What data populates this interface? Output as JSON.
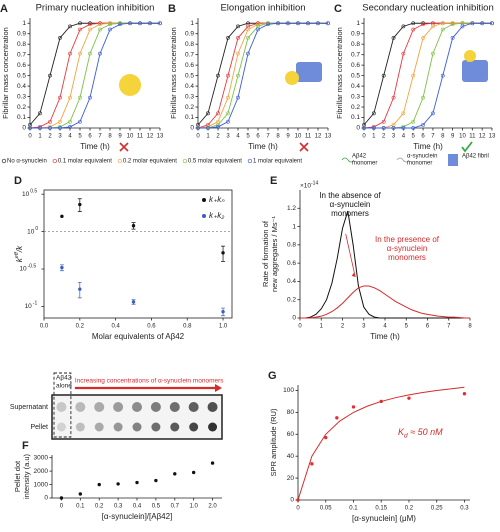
{
  "chart_data": [
    {
      "panel": "A",
      "type": "line",
      "title": "Primary nucleation inhibition",
      "xlabel": "Time (h)",
      "ylabel": "Fibrillar mass concentration",
      "x": [
        0,
        1,
        2,
        3,
        4,
        5,
        6,
        7,
        8,
        9,
        10,
        11,
        12,
        13
      ],
      "xlim": [
        0,
        13
      ],
      "ylim": [
        0,
        1.05
      ],
      "xticks": [
        0,
        1,
        2,
        3,
        4,
        5,
        6,
        7,
        8,
        9,
        10,
        11,
        12,
        13
      ],
      "yticks": [
        0,
        0.1,
        0.2,
        0.3,
        0.4,
        0.5,
        0.6,
        0.7,
        0.8,
        0.9,
        1
      ],
      "markers": true,
      "legend": "below",
      "series": [
        {
          "name": "No α-synuclein",
          "color": "#222222",
          "values": [
            0.03,
            0.14,
            0.5,
            0.86,
            0.97,
            1,
            1,
            1,
            1,
            1,
            1,
            1,
            1,
            1
          ]
        },
        {
          "name": "0.1 molar equivalent",
          "color": "#e8383d",
          "values": [
            0,
            0.01,
            0.06,
            0.29,
            0.71,
            0.94,
            0.99,
            1,
            1,
            1,
            1,
            1,
            1,
            1
          ]
        },
        {
          "name": "0.2 molar equivalent",
          "color": "#f4a340",
          "values": [
            0,
            0,
            0.01,
            0.06,
            0.29,
            0.71,
            0.94,
            0.99,
            1,
            1,
            1,
            1,
            1,
            1
          ]
        },
        {
          "name": "0.5 molar equivalent",
          "color": "#7cc242",
          "values": [
            0,
            0,
            0,
            0.01,
            0.06,
            0.29,
            0.71,
            0.94,
            0.99,
            1,
            1,
            1,
            1,
            1
          ]
        },
        {
          "name": "1 molar equivalent",
          "color": "#3b5bdb",
          "values": [
            0,
            0,
            0,
            0,
            0.01,
            0.06,
            0.29,
            0.71,
            0.94,
            0.99,
            1,
            1,
            1,
            1
          ]
        }
      ]
    },
    {
      "panel": "B",
      "type": "line",
      "title": "Elongation inhibition",
      "xlabel": "Time (h)",
      "ylabel": "Fibrillar mass concentration",
      "x": [
        0,
        1,
        2,
        3,
        4,
        5,
        6,
        7,
        8,
        9,
        10,
        11,
        12,
        13
      ],
      "xlim": [
        0,
        13
      ],
      "ylim": [
        0,
        1.05
      ],
      "xticks": [
        0,
        1,
        2,
        3,
        4,
        5,
        6,
        7,
        8,
        9,
        10,
        11,
        12,
        13
      ],
      "yticks": [
        0,
        0.1,
        0.2,
        0.3,
        0.4,
        0.5,
        0.6,
        0.7,
        0.8,
        0.9,
        1
      ],
      "markers": true,
      "series": [
        {
          "color": "#222222",
          "values": [
            0.03,
            0.14,
            0.5,
            0.86,
            0.97,
            1,
            1,
            1,
            1,
            1,
            1,
            1,
            1,
            1
          ]
        },
        {
          "color": "#e8383d",
          "values": [
            0,
            0.03,
            0.14,
            0.5,
            0.86,
            0.97,
            1,
            1,
            1,
            1,
            1,
            1,
            1,
            1
          ]
        },
        {
          "color": "#f4a340",
          "values": [
            0,
            0.01,
            0.06,
            0.29,
            0.71,
            0.94,
            0.99,
            1,
            1,
            1,
            1,
            1,
            1,
            1
          ]
        },
        {
          "color": "#7cc242",
          "values": [
            0,
            0,
            0.03,
            0.14,
            0.5,
            0.86,
            0.97,
            1,
            1,
            1,
            1,
            1,
            1,
            1
          ]
        },
        {
          "color": "#3b5bdb",
          "values": [
            0,
            0,
            0.01,
            0.06,
            0.29,
            0.71,
            0.94,
            0.99,
            1,
            1,
            1,
            1,
            1,
            1
          ]
        }
      ]
    },
    {
      "panel": "C",
      "type": "line",
      "title": "Secondary nucleation inhibition",
      "xlabel": "Time (h)",
      "ylabel": "Fibrillar mass concentration",
      "x": [
        0,
        1,
        2,
        3,
        4,
        5,
        6,
        7,
        8,
        9,
        10,
        11,
        12,
        13
      ],
      "xlim": [
        0,
        13
      ],
      "ylim": [
        0,
        1.05
      ],
      "xticks": [
        0,
        1,
        2,
        3,
        4,
        5,
        6,
        7,
        8,
        9,
        10,
        11,
        12,
        13
      ],
      "yticks": [
        0,
        0.1,
        0.2,
        0.3,
        0.4,
        0.5,
        0.6,
        0.7,
        0.8,
        0.9,
        1
      ],
      "markers": true,
      "illustration_labels": [
        [
          "Aβ42",
          "monomer"
        ],
        [
          "α-synuclein",
          "monomer"
        ],
        [
          "Aβ42 fibril"
        ]
      ],
      "series": [
        {
          "color": "#222222",
          "values": [
            0.03,
            0.14,
            0.5,
            0.86,
            0.97,
            1,
            1,
            1,
            1,
            1,
            1,
            1,
            1,
            1
          ]
        },
        {
          "color": "#e8383d",
          "values": [
            0,
            0.01,
            0.06,
            0.29,
            0.71,
            0.94,
            0.99,
            1,
            1,
            1,
            1,
            1,
            1,
            1
          ]
        },
        {
          "color": "#f4a340",
          "values": [
            0,
            0,
            0,
            0.03,
            0.14,
            0.5,
            0.86,
            0.97,
            1,
            1,
            1,
            1,
            1,
            1
          ]
        },
        {
          "color": "#7cc242",
          "values": [
            0,
            0,
            0,
            0,
            0.01,
            0.06,
            0.29,
            0.71,
            0.94,
            0.99,
            1,
            1,
            1,
            1
          ]
        },
        {
          "color": "#3b5bdb",
          "values": [
            0,
            0,
            0,
            0,
            0,
            0,
            0.03,
            0.14,
            0.5,
            0.86,
            0.97,
            1,
            1,
            1
          ]
        }
      ]
    },
    {
      "panel": "D",
      "type": "scatter",
      "xlabel": "Molar equivalents of Aβ42",
      "ylabel_parts": [
        "k",
        "eff",
        "/k"
      ],
      "xlim": [
        0,
        1.05
      ],
      "ylim": [
        0.07,
        3.6
      ],
      "log_y": true,
      "frame": true,
      "reference_line": 1,
      "legend": "upper right",
      "xticks": [
        {
          "value": 0,
          "label": "0.0"
        },
        0.2,
        0.4,
        0.6,
        0.8,
        {
          "value": 1,
          "label": "1.0"
        }
      ],
      "yticks": [
        {
          "value": 3.1623,
          "label": "10",
          "exp": "0.5"
        },
        {
          "value": 1,
          "label": "10",
          "exp": "0"
        },
        {
          "value": 0.31623,
          "label": "10",
          "exp": "-0.5"
        },
        {
          "value": 0.1,
          "label": "10",
          "exp": "-1"
        }
      ],
      "series": [
        {
          "name": "k₊kₙ",
          "color": "#111111",
          "x": [
            0.1,
            0.2,
            0.5,
            1.0
          ],
          "values": [
            1.6,
            2.3,
            1.2,
            0.52
          ],
          "errors": [
            null,
            0.45,
            0.12,
            0.12
          ]
        },
        {
          "name": "k₊k₂",
          "color": "#3a5fbf",
          "x": [
            0.1,
            0.2,
            0.5,
            1.0
          ],
          "values": [
            0.33,
            0.17,
            0.115,
            0.085
          ],
          "errors": [
            0.03,
            0.04,
            0.008,
            0.01
          ]
        }
      ]
    },
    {
      "panel": "E",
      "type": "line",
      "xlabel": "Time (h)",
      "ylabel": [
        "Rate of formation of",
        "new aggregates / Ms⁻¹"
      ],
      "y_multiplier": {
        "label": "×10",
        "exp": "-14"
      },
      "x": [
        0,
        0.25,
        0.5,
        0.75,
        1,
        1.25,
        1.5,
        1.75,
        2,
        2.25,
        2.5,
        2.75,
        3,
        3.25,
        3.5,
        3.75,
        4,
        4.25,
        4.5,
        4.75,
        5,
        5.25,
        5.5,
        5.75,
        6,
        6.25,
        6.5,
        6.75,
        7,
        7.25,
        7.5,
        7.75,
        8
      ],
      "xlim": [
        0,
        8
      ],
      "ylim": [
        0,
        1.4
      ],
      "xticks": [
        0,
        1,
        2,
        3,
        4,
        5,
        6,
        7,
        8
      ],
      "yticks": [
        0,
        0.2,
        0.4,
        0.6,
        0.8,
        1,
        1.2
      ],
      "annotations": [
        {
          "lines": [
            "In the absence of",
            "α-synuclein",
            "monomers"
          ],
          "color": "#111111"
        },
        {
          "lines": [
            "In the presence of",
            "α-synuclein",
            "monomers"
          ],
          "color": "#d62b2b"
        }
      ],
      "series": [
        {
          "color": "#111111",
          "values": [
            0,
            0,
            0.01,
            0.04,
            0.1,
            0.2,
            0.38,
            0.65,
            0.98,
            1.17,
            0.8,
            0.35,
            0.12,
            0.04,
            0.01,
            0,
            0,
            0,
            0,
            0,
            0,
            0,
            0,
            0,
            0,
            0,
            0,
            0,
            0,
            0,
            0,
            0,
            0
          ]
        },
        {
          "color": "#d62b2b",
          "values": [
            0,
            0,
            0,
            0.01,
            0.02,
            0.04,
            0.07,
            0.11,
            0.16,
            0.22,
            0.28,
            0.33,
            0.35,
            0.35,
            0.33,
            0.3,
            0.26,
            0.22,
            0.18,
            0.15,
            0.12,
            0.09,
            0.07,
            0.05,
            0.04,
            0.03,
            0.02,
            0.015,
            0.01,
            0.01,
            0.005,
            0,
            0
          ]
        }
      ]
    },
    {
      "panel": "F",
      "type": "scatter",
      "xlabel": "[α-synuclein]/[Aβ42]",
      "ylabel": [
        "Pellet dot",
        "intensity (a.u)"
      ],
      "categories": [
        "0",
        "0.1",
        "0.2",
        "0.3",
        "0.4",
        "0.5",
        "0.7",
        "1.0",
        "2.0"
      ],
      "ylim": [
        0,
        3200
      ],
      "yticks": [
        0,
        1000,
        2000,
        3000
      ],
      "blot": {
        "alone": [
          "Aβ42",
          "alone"
        ],
        "arrow_label": "Increasing concentrations of α-synuclein monomers",
        "rows": [
          "Supernatant",
          "Pellet"
        ]
      },
      "series": [
        {
          "color": "#111111",
          "values": [
            0,
            300,
            1000,
            1050,
            1150,
            1300,
            1800,
            1900,
            2600
          ]
        }
      ]
    },
    {
      "panel": "G",
      "type": "scatter",
      "xlabel": "[α-synuclein] (μM)",
      "ylabel": "SPR amplitude (RU)",
      "xlim": [
        0,
        0.31
      ],
      "ylim": [
        0,
        105
      ],
      "xticks": [
        0,
        0.05,
        0.1,
        0.15,
        0.2,
        0.25,
        0.3
      ],
      "yticks": [
        0,
        20,
        40,
        60,
        80,
        100
      ],
      "annotation": {
        "text": "K",
        "sub": "d",
        "rest": " ≈ 50 nM",
        "color": "#d62b2b"
      },
      "series": [
        {
          "color": "#e23030",
          "x": [
            0,
            0.025,
            0.05,
            0.07,
            0.1,
            0.15,
            0.2,
            0.3
          ],
          "values": [
            0,
            33,
            57,
            75,
            85,
            90,
            93,
            97
          ]
        },
        {
          "color": "#d62b2b",
          "line": true,
          "x": [
            0,
            0.025,
            0.05,
            0.075,
            0.1,
            0.125,
            0.15,
            0.175,
            0.2,
            0.225,
            0.25,
            0.275,
            0.3
          ],
          "values": [
            0,
            40,
            60,
            72,
            80,
            85.7,
            90,
            93.3,
            96,
            98.2,
            100,
            101.5,
            102.9
          ]
        }
      ]
    }
  ]
}
